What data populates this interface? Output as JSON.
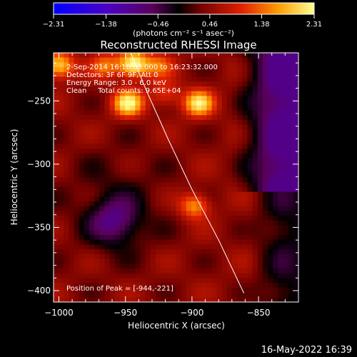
{
  "chart_data": {
    "type": "heatmap",
    "title": "Reconstructed RHESSI Image",
    "xlabel": "Heliocentric X (arcsec)",
    "ylabel": "Heliocentric Y (arcsec)",
    "xlim": [
      -1004,
      -820
    ],
    "ylim": [
      -409,
      -212
    ],
    "xticks": [
      -1000,
      -950,
      -900,
      -850
    ],
    "yticks": [
      -250,
      -300,
      -350,
      -400
    ],
    "xtick_labels": [
      "−1000",
      "−950",
      "−900",
      "−850"
    ],
    "ytick_labels": [
      "−250",
      "−300",
      "−350",
      "−400"
    ],
    "colorbar": {
      "range": [
        -2.31,
        2.31
      ],
      "ticks": [
        -2.31,
        -1.38,
        -0.46,
        0.46,
        1.38,
        2.31
      ],
      "tick_labels": [
        "−2.31",
        "−1.38",
        "−0.46",
        "0.46",
        "1.38",
        "2.31"
      ],
      "units_label": "(photons cm⁻² s⁻¹ asec⁻²)"
    },
    "info_lines": [
      "2-Sep-2014 16:18:08.000 to 16:23:32.000",
      "Detectors: 3F 6F 9F, Att 0",
      "Energy Range: 3.0 - 6.0 keV",
      "Clean     Total counts: 9.65E+04"
    ],
    "peak_label": "Position of Peak = [-944,-221]",
    "peak": [
      -944,
      -221
    ],
    "sources": [
      {
        "x": -944,
        "y": -221,
        "value": 2.31
      },
      {
        "x": -1000,
        "y": -222,
        "value": 1.9
      },
      {
        "x": -948,
        "y": -252,
        "value": 2.1
      },
      {
        "x": -920,
        "y": -245,
        "value": 1.0
      },
      {
        "x": -895,
        "y": -252,
        "value": 1.95
      },
      {
        "x": -898,
        "y": -333,
        "value": 1.5
      },
      {
        "x": -965,
        "y": -222,
        "value": 1.2
      },
      {
        "x": -925,
        "y": -222,
        "value": 1.1
      }
    ],
    "limb": [
      [
        -946,
        -212
      ],
      [
        -935,
        -240
      ],
      [
        -918,
        -280
      ],
      [
        -900,
        -320
      ],
      [
        -880,
        -360
      ],
      [
        -861,
        -402
      ]
    ]
  },
  "footer": {
    "timestamp": "16-May-2022 16:39"
  }
}
